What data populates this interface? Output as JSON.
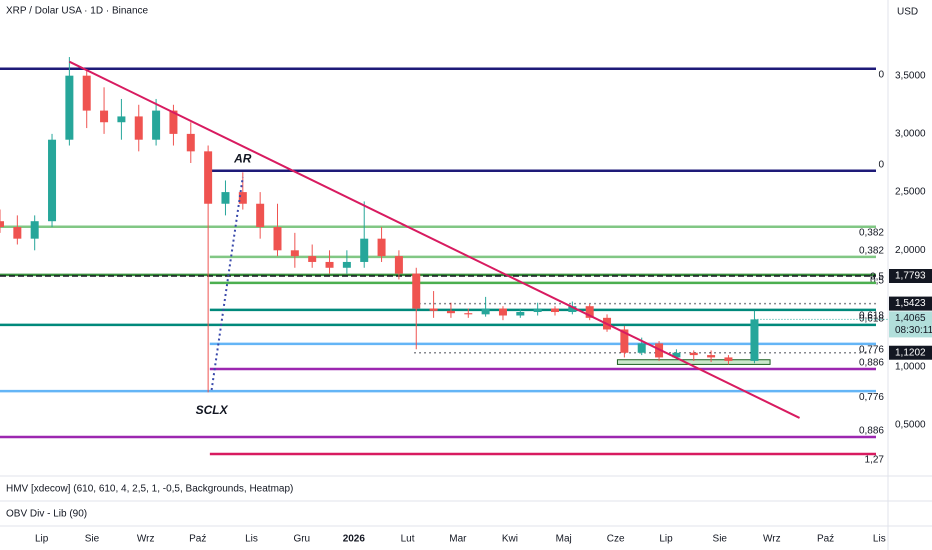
{
  "chart_data": {
    "type": "candlestick",
    "title": "XRP / Dolar USA · 1D · Binance",
    "currency": "USD",
    "up_color": "#26a69a",
    "down_color": "#ef5350",
    "xlim": [
      0,
      512
    ],
    "ylim": [
      0.07,
      4.15
    ],
    "xticks": [
      {
        "value": 24,
        "label": "Lip"
      },
      {
        "value": 53,
        "label": "Sie"
      },
      {
        "value": 84,
        "label": "Wrz"
      },
      {
        "value": 114,
        "label": "Paź"
      },
      {
        "value": 145,
        "label": "Lis"
      },
      {
        "value": 174,
        "label": "Gru"
      },
      {
        "value": 204,
        "label": "2026"
      },
      {
        "value": 235,
        "label": "Lut"
      },
      {
        "value": 264,
        "label": "Mar"
      },
      {
        "value": 294,
        "label": "Kwi"
      },
      {
        "value": 325,
        "label": "Maj"
      },
      {
        "value": 355,
        "label": "Cze"
      },
      {
        "value": 384,
        "label": "Lip"
      },
      {
        "value": 415,
        "label": "Sie"
      },
      {
        "value": 445,
        "label": "Wrz"
      },
      {
        "value": 476,
        "label": "Paź"
      },
      {
        "value": 507,
        "label": "Lis"
      }
    ],
    "yticks": [
      {
        "value": 3.5,
        "label": "3,5000"
      },
      {
        "value": 3,
        "label": "3,0000"
      },
      {
        "value": 2.5,
        "label": "2,5000"
      },
      {
        "value": 2,
        "label": "2,0000"
      },
      {
        "value": 1,
        "label": "1,0000"
      },
      {
        "value": 0.5,
        "label": "0,5000"
      }
    ],
    "x": [
      0,
      10,
      20,
      30,
      40,
      50,
      60,
      70,
      80,
      90,
      100,
      110,
      120,
      130,
      140,
      150,
      160,
      170,
      180,
      190,
      200,
      210,
      220,
      230,
      240,
      250,
      260,
      270,
      280,
      290,
      300,
      310,
      320,
      330,
      340,
      350,
      360,
      370,
      380,
      390,
      400,
      410,
      420,
      435
    ],
    "open": [
      2.25,
      2.2,
      2.1,
      2.25,
      2.95,
      3.5,
      3.2,
      3.1,
      3.15,
      2.95,
      3.2,
      3.0,
      2.85,
      2.4,
      2.5,
      2.4,
      2.2,
      2.0,
      1.95,
      1.9,
      1.85,
      1.9,
      2.1,
      1.95,
      1.8,
      1.5,
      1.48,
      1.46,
      1.45,
      1.5,
      1.44,
      1.47,
      1.5,
      1.47,
      1.52,
      1.42,
      1.32,
      1.12,
      1.2,
      1.08,
      1.12,
      1.1,
      1.08,
      1.05
    ],
    "high": [
      2.35,
      2.3,
      2.3,
      3.0,
      3.66,
      3.55,
      3.4,
      3.3,
      3.25,
      3.3,
      3.25,
      3.1,
      2.9,
      2.6,
      2.67,
      2.5,
      2.4,
      2.15,
      2.05,
      2.0,
      2.0,
      2.42,
      2.2,
      2.0,
      1.85,
      1.65,
      1.55,
      1.5,
      1.6,
      1.52,
      1.5,
      1.55,
      1.52,
      1.56,
      1.54,
      1.45,
      1.35,
      1.25,
      1.22,
      1.15,
      1.14,
      1.14,
      1.1,
      1.48
    ],
    "low": [
      2.15,
      2.05,
      2.0,
      2.2,
      2.9,
      3.05,
      3.0,
      2.95,
      2.85,
      2.9,
      2.9,
      2.75,
      0.78,
      2.3,
      2.35,
      2.1,
      1.95,
      1.85,
      1.85,
      1.8,
      1.8,
      1.85,
      1.9,
      1.75,
      1.15,
      1.42,
      1.42,
      1.42,
      1.43,
      1.4,
      1.42,
      1.44,
      1.44,
      1.45,
      1.4,
      1.3,
      1.08,
      1.1,
      1.05,
      1.06,
      1.05,
      1.04,
      1.02,
      1.03
    ],
    "close": [
      2.2,
      2.1,
      2.25,
      2.95,
      3.5,
      3.2,
      3.1,
      3.15,
      2.95,
      3.2,
      3.0,
      2.85,
      2.4,
      2.5,
      2.4,
      2.2,
      2.0,
      1.95,
      1.9,
      1.85,
      1.9,
      2.1,
      1.95,
      1.8,
      1.5,
      1.48,
      1.46,
      1.45,
      1.5,
      1.44,
      1.47,
      1.5,
      1.47,
      1.52,
      1.42,
      1.32,
      1.12,
      1.2,
      1.08,
      1.12,
      1.1,
      1.08,
      1.05,
      1.4065
    ],
    "last_label": "1,4065",
    "countdown": "08:30:11",
    "levels": [
      {
        "label": "0",
        "value": 3.56,
        "color": "#1e1a78",
        "from": 0
      },
      {
        "label": "0",
        "value": 2.683,
        "color": "#1e1a78",
        "from": 121
      },
      {
        "label": "0,382",
        "value": 2.202,
        "color": "#81c784",
        "from": 0
      },
      {
        "label": "0,382",
        "value": 1.944,
        "color": "#81c784",
        "from": 121
      },
      {
        "label": "0,5",
        "value": 1.789,
        "color": "#388e3c",
        "from": 0
      },
      {
        "label": "0,5",
        "value": 1.72,
        "color": "#4caf50",
        "from": 121
      },
      {
        "label": "0,618",
        "value": 1.488,
        "color": "#00897b",
        "from": 121
      },
      {
        "label": "0,618",
        "value": 1.36,
        "color": "#00897b",
        "from": 0
      },
      {
        "label": "0,776",
        "value": 1.196,
        "color": "#64b5f6",
        "from": 121
      },
      {
        "label": "0,886",
        "value": 0.98,
        "color": "#9c27b0",
        "from": 121
      },
      {
        "label": "0,776",
        "value": 0.79,
        "color": "#64b5f6",
        "from": 0
      },
      {
        "label": "0,886",
        "value": 0.396,
        "color": "#9c27b0",
        "from": 0
      },
      {
        "label": "1,27",
        "value": 0.25,
        "color": "#d81b60",
        "from": 121
      }
    ],
    "price_lines": [
      {
        "value": 1.7793,
        "label": "1,7793",
        "from": 0
      },
      {
        "value": 1.5423,
        "label": "1,5423",
        "from": 239
      },
      {
        "value": 1.1202,
        "label": "1,1202",
        "from": 239
      }
    ],
    "trendline": {
      "x": [
        40,
        461
      ],
      "y": [
        3.62,
        0.56
      ],
      "color": "#d81b60"
    },
    "dotted_line": {
      "x": [
        122,
        140
      ],
      "y": [
        0.8,
        2.63
      ],
      "color": "#3949ab"
    },
    "zone": {
      "x": [
        356,
        444
      ],
      "y": [
        1.06,
        1.02
      ],
      "color": "#66bb6a"
    },
    "annotations": [
      {
        "text": "AR",
        "x": 140,
        "y": 2.78
      },
      {
        "text": "SCLX",
        "x": 122,
        "y": 0.62
      }
    ],
    "indicators": [
      "HMV [xdecow] (610, 610, 4, 2,5, 1, -0,5, Backgrounds, Heatmap)",
      "OBV Div - Lib (90)"
    ]
  }
}
